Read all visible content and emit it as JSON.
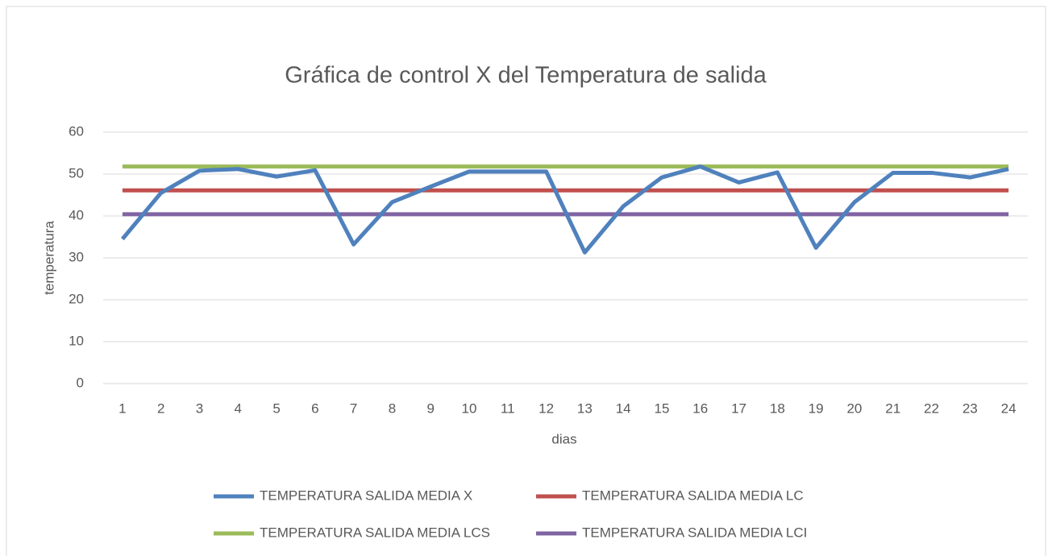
{
  "chart_data": {
    "type": "line",
    "title": "Gráfica de control  X del Temperatura de salida",
    "x_label": "dias",
    "y_label": "temperatura",
    "categories": [
      1,
      2,
      3,
      4,
      5,
      6,
      7,
      8,
      9,
      10,
      11,
      12,
      13,
      14,
      15,
      16,
      17,
      18,
      19,
      20,
      21,
      22,
      23,
      24
    ],
    "series": [
      {
        "name": "TEMPERATURA SALIDA MEDIA X",
        "color": "#4f81bd",
        "values": [
          34.5,
          45.5,
          50.8,
          51.2,
          49.4,
          50.9,
          33.2,
          43.3,
          47,
          50.6,
          50.6,
          50.6,
          31.3,
          42.3,
          49.2,
          51.8,
          48,
          50.4,
          32.4,
          43.3,
          50.3,
          50.3,
          49.2,
          51.2
        ]
      },
      {
        "name": "TEMPERATURA SALIDA MEDIA LC",
        "color": "#c0504d",
        "values": [
          46.1,
          46.1,
          46.1,
          46.1,
          46.1,
          46.1,
          46.1,
          46.1,
          46.1,
          46.1,
          46.1,
          46.1,
          46.1,
          46.1,
          46.1,
          46.1,
          46.1,
          46.1,
          46.1,
          46.1,
          46.1,
          46.1,
          46.1,
          46.1
        ]
      },
      {
        "name": "TEMPERATURA SALIDA MEDIA LCS",
        "color": "#9bbb59",
        "values": [
          51.8,
          51.8,
          51.8,
          51.8,
          51.8,
          51.8,
          51.8,
          51.8,
          51.8,
          51.8,
          51.8,
          51.8,
          51.8,
          51.8,
          51.8,
          51.8,
          51.8,
          51.8,
          51.8,
          51.8,
          51.8,
          51.8,
          51.8,
          51.8
        ]
      },
      {
        "name": "TEMPERATURA SALIDA MEDIA LCI",
        "color": "#8064a2",
        "values": [
          40.4,
          40.4,
          40.4,
          40.4,
          40.4,
          40.4,
          40.4,
          40.4,
          40.4,
          40.4,
          40.4,
          40.4,
          40.4,
          40.4,
          40.4,
          40.4,
          40.4,
          40.4,
          40.4,
          40.4,
          40.4,
          40.4,
          40.4,
          40.4
        ]
      }
    ],
    "ylim": [
      0,
      60
    ],
    "yticks": [
      0,
      10,
      20,
      30,
      40,
      50,
      60
    ],
    "grid": true,
    "legend": "bottom"
  }
}
